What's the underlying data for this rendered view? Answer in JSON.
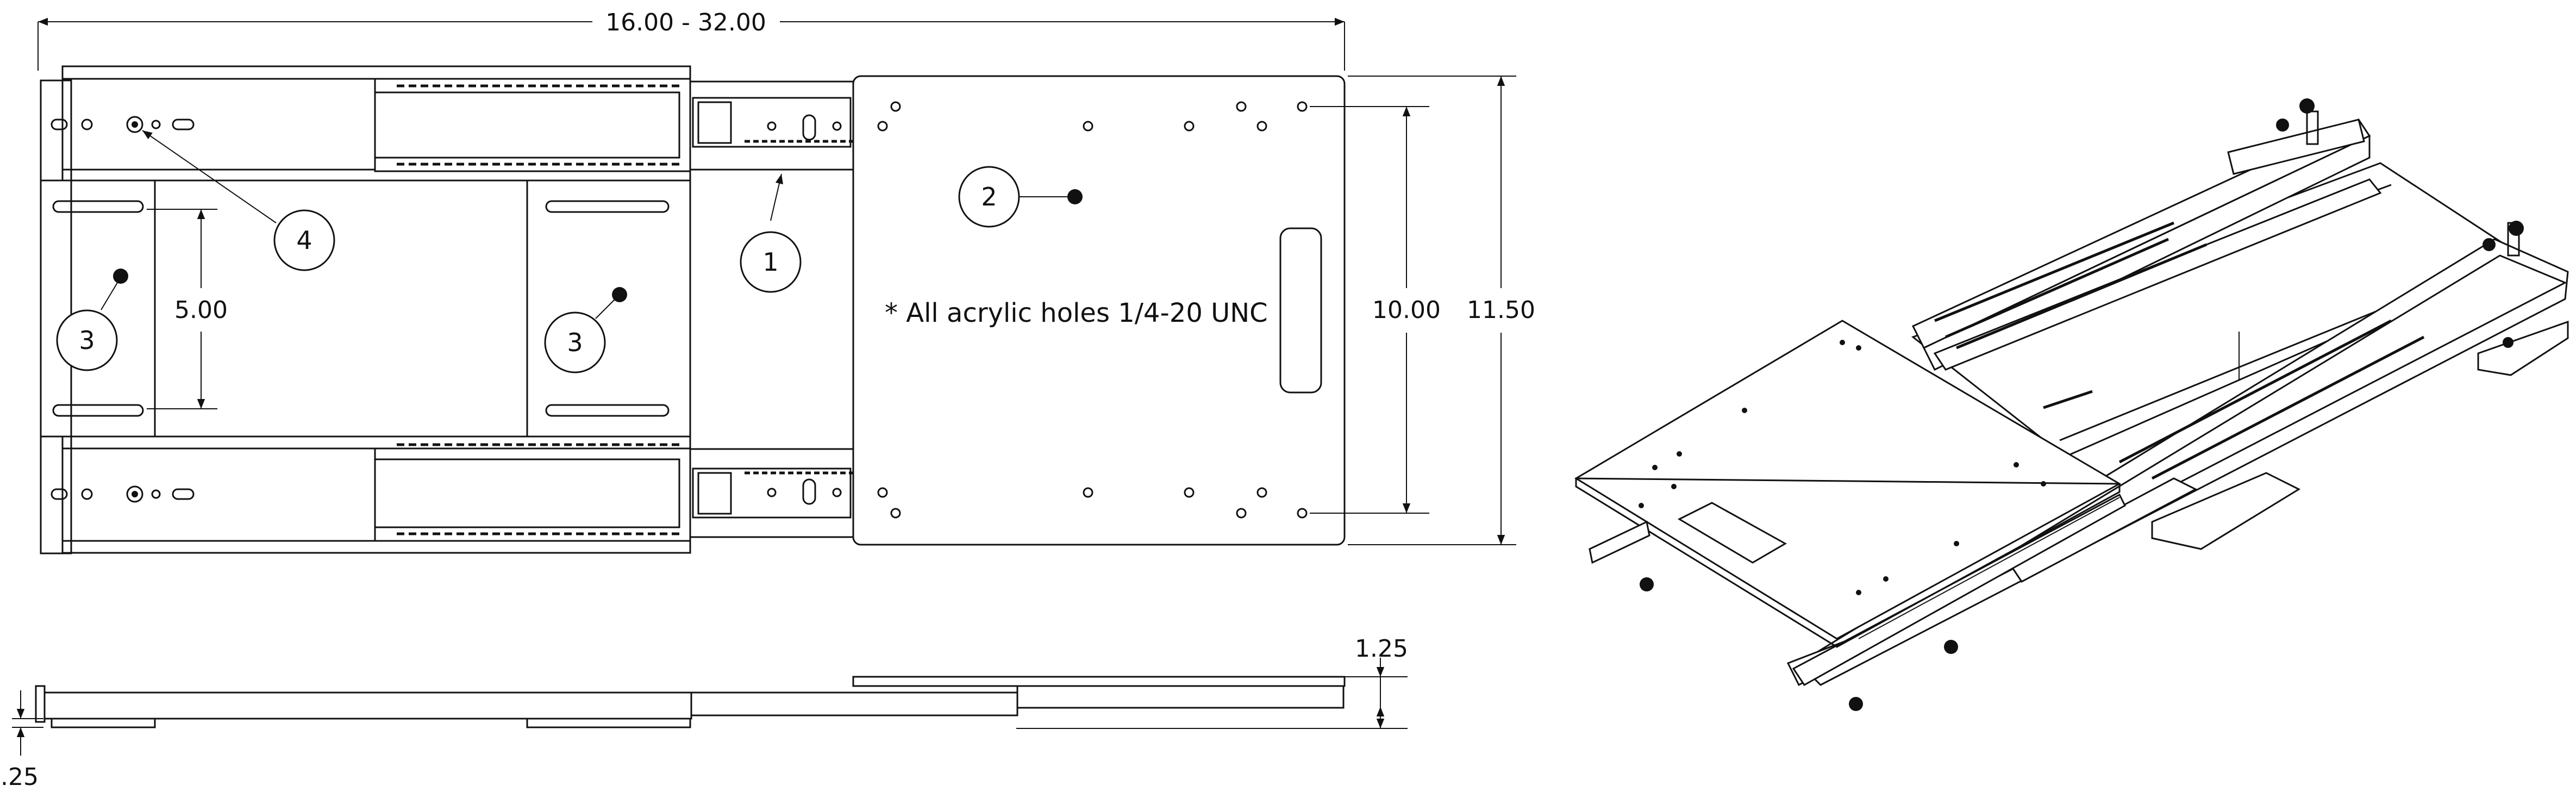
{
  "dimensions": {
    "overall_length": "16.00 - 32.00",
    "inner_width": "5.00",
    "plate_hole_spacing": "10.00",
    "overall_width": "11.50",
    "side_height": "1.25",
    "bottom_thickness": ".25"
  },
  "note": "* All acrylic holes 1/4-20 UNC",
  "callouts": [
    "1",
    "2",
    "3",
    "4"
  ]
}
